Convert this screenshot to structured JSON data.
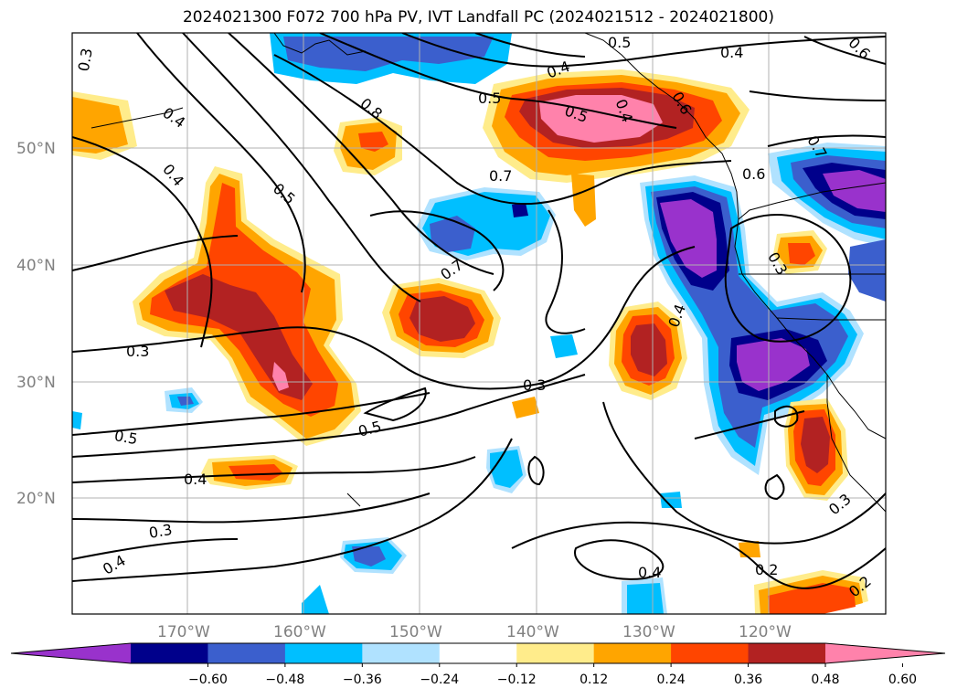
{
  "title": "2024021300 F072 700 hPa PV, IVT Landfall PC (2024021512 - 2024021800)",
  "map": {
    "lon_ticks": [
      "170°W",
      "160°W",
      "150°W",
      "140°W",
      "130°W",
      "120°W"
    ],
    "lat_ticks": [
      "50°N",
      "40°N",
      "30°N",
      "20°N"
    ],
    "gridlines": true
  },
  "contour_labels": [
    "0.3",
    "0.4",
    "0.4",
    "0.5",
    "0.8",
    "0.5",
    "0.4",
    "0.5",
    "0.6",
    "0.4",
    "0.7",
    "0.6",
    "0.7",
    "0.3",
    "0.7",
    "0.3",
    "0.3",
    "0.5",
    "0.5",
    "0.3",
    "0.4",
    "0.4",
    "0.3",
    "0.4",
    "0.4",
    "0.2",
    "0.2",
    "0.4",
    "0.6",
    "0.5"
  ],
  "colorbar": {
    "ticks": [
      "−0.60",
      "−0.48",
      "−0.36",
      "−0.24",
      "−0.12",
      "0.12",
      "0.24",
      "0.36",
      "0.48",
      "0.60"
    ],
    "colors": [
      "#9932cc",
      "#00008b",
      "#3b5fcd",
      "#00bfff",
      "#b0e2ff",
      "#ffffff",
      "#ffec8b",
      "#ffa500",
      "#ff4500",
      "#b22222",
      "#ff82ab"
    ],
    "extend": "both"
  }
}
